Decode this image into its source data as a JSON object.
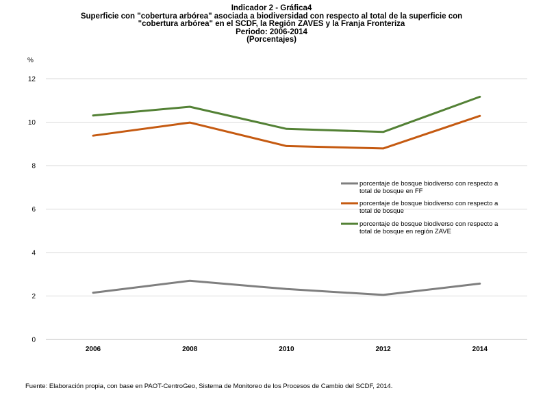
{
  "chart_data": {
    "type": "line",
    "title_lines": [
      "Indicador 2 - Gráfica4",
      "Superficie con \"cobertura arbórea\" asociada a biodiversidad con respecto al total de la superficie con",
      "\"cobertura arbórea\" en el SCDF, la Región ZAVES y la Franja Fronteriza",
      "Periodo: 2006-2014",
      "(Porcentajes)"
    ],
    "ylabel": "%",
    "xlabel": "",
    "x": [
      "2006",
      "2008",
      "2010",
      "2012",
      "2014"
    ],
    "ylim": [
      0,
      12
    ],
    "yticks": [
      "0",
      "2",
      "4",
      "6",
      "8",
      "10",
      "12"
    ],
    "grid": true,
    "legend_position": "right",
    "series": [
      {
        "name_lines": [
          "porcentaje de bosque biodiverso con respecto a",
          "total de bosque en FF"
        ],
        "color": "#7f7f7f",
        "values": [
          2.15,
          2.7,
          2.32,
          2.05,
          2.57
        ]
      },
      {
        "name_lines": [
          "porcentaje de bosque biodiverso con respecto a",
          "total de bosque"
        ],
        "color": "#c55a11",
        "values": [
          9.38,
          9.98,
          8.9,
          8.79,
          10.29
        ]
      },
      {
        "name_lines": [
          "porcentaje de bosque biodiverso con respecto a",
          "total de bosque en región ZAVE"
        ],
        "color": "#538135",
        "values": [
          10.31,
          10.71,
          9.69,
          9.55,
          11.17
        ]
      }
    ],
    "source": "Fuente: Elaboración propia, con base en PAOT-CentroGeo, Sistema de Monitoreo de los Procesos de Cambio del SCDF, 2014."
  }
}
